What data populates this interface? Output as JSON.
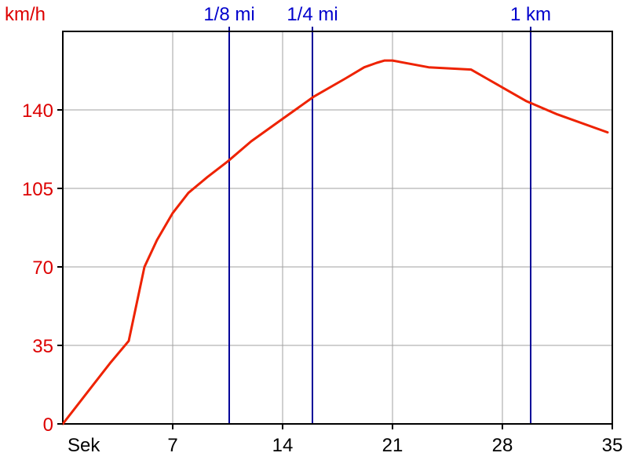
{
  "chart_data": {
    "type": "line",
    "ylabel": "km/h",
    "xlabel": "Sek",
    "xlim": [
      0,
      35
    ],
    "ylim": [
      0,
      175
    ],
    "x_ticks": [
      7,
      14,
      21,
      28,
      35
    ],
    "y_ticks": [
      0,
      35,
      70,
      105,
      140
    ],
    "grid": true,
    "series": [
      {
        "color": "#ee2200",
        "x": [
          0,
          1,
          2,
          3,
          4.2,
          5.2,
          6,
          7,
          8,
          9.2,
          10.5,
          12,
          14,
          16,
          18,
          19.2,
          20,
          20.5,
          21,
          23.3,
          26,
          27,
          28,
          29.5,
          31.5,
          34.7
        ],
        "y": [
          0,
          9,
          18,
          27,
          37,
          70,
          82,
          94,
          103,
          110,
          117,
          126,
          136,
          146,
          154,
          159,
          161,
          162,
          162,
          159,
          158,
          154,
          150,
          144,
          138,
          130
        ]
      }
    ],
    "markers": [
      {
        "label": "1/8 mi",
        "x": 10.6,
        "color": "#000099"
      },
      {
        "label": "1/4 mi",
        "x": 15.9,
        "color": "#000099"
      },
      {
        "label": "1 km",
        "x": 29.8,
        "color": "#000099"
      }
    ]
  }
}
